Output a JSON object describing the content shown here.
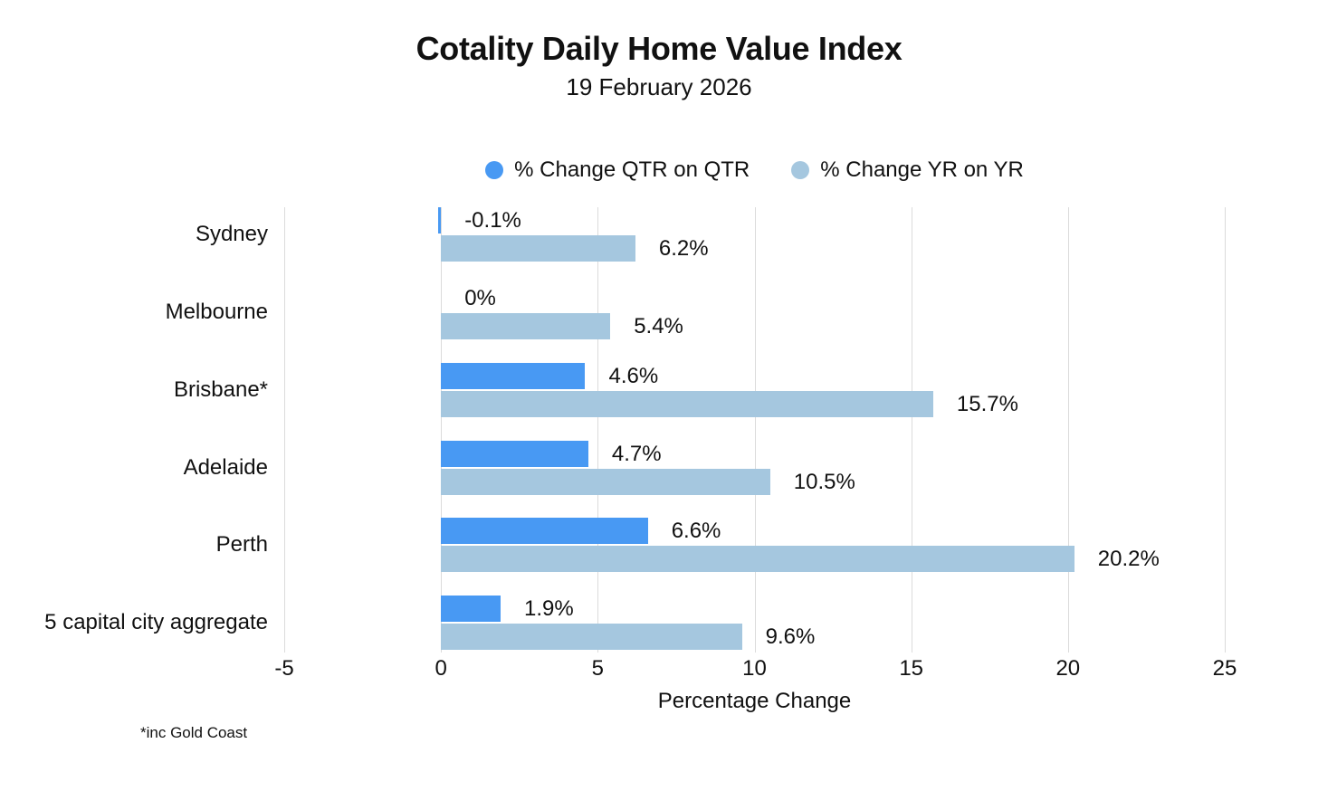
{
  "header": {
    "title": "Cotality Daily Home Value Index",
    "subtitle": "19 February 2026"
  },
  "chart_data": {
    "type": "bar",
    "orientation": "horizontal",
    "title": "Cotality Daily Home Value Index",
    "subtitle": "19 February 2026",
    "categories": [
      "Sydney",
      "Melbourne",
      "Brisbane*",
      "Adelaide",
      "Perth",
      "5 capital city aggregate"
    ],
    "series": [
      {
        "name": "% Change QTR on QTR",
        "color": "#4899F3",
        "values": [
          -0.1,
          0,
          4.6,
          4.7,
          6.6,
          1.9
        ],
        "labels": [
          "-0.1%",
          "0%",
          "4.6%",
          "4.7%",
          "6.6%",
          "1.9%"
        ]
      },
      {
        "name": "% Change YR on YR",
        "color": "#A5C7DF",
        "values": [
          6.2,
          5.4,
          15.7,
          10.5,
          20.2,
          9.6
        ],
        "labels": [
          "6.2%",
          "5.4%",
          "15.7%",
          "10.5%",
          "20.2%",
          "9.6%"
        ]
      }
    ],
    "xlabel": "Percentage Change",
    "xlim": [
      -5,
      25
    ],
    "xticks": [
      -5,
      0,
      5,
      10,
      15,
      20,
      25
    ],
    "grid": true,
    "legend_position": "top"
  },
  "footnote": "*inc Gold Coast",
  "colors": {
    "background": "#ffffff",
    "gridline": "#DBDBDB",
    "text": "#111111",
    "qtr_blue": "#4899F3",
    "yr_light_blue": "#A5C7DF"
  }
}
